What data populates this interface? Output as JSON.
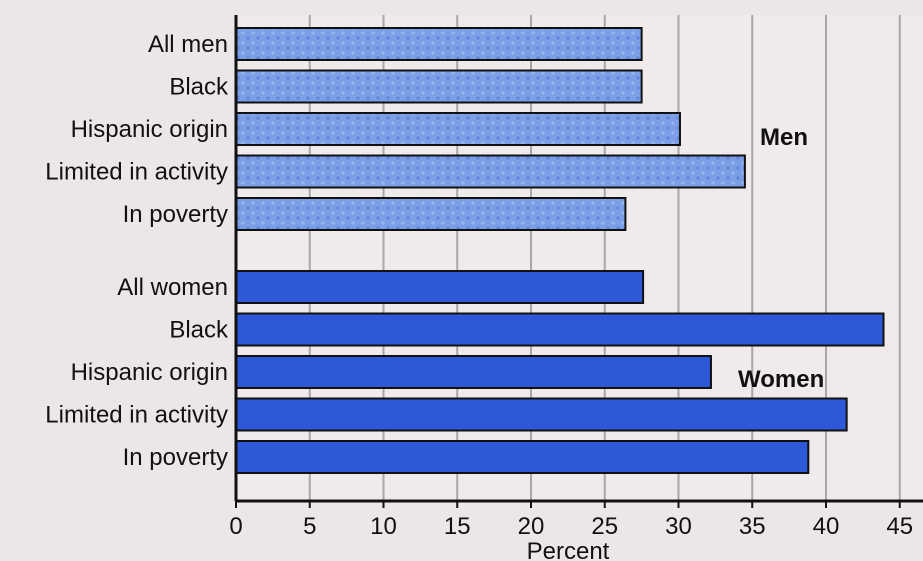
{
  "chart_data": {
    "type": "bar",
    "orientation": "horizontal",
    "xlabel": "Percent",
    "xlim": [
      0,
      45
    ],
    "xticks": [
      0,
      5,
      10,
      15,
      20,
      25,
      30,
      35,
      40,
      45
    ],
    "grid": "vertical",
    "groups": [
      {
        "name": "Men",
        "color": "#7b9ee6",
        "pattern": "dotted",
        "categories": [
          "All men",
          "Black",
          "Hispanic origin",
          "Limited in activity",
          "In poverty"
        ],
        "values": [
          27.5,
          27.5,
          30.1,
          34.5,
          26.4
        ]
      },
      {
        "name": "Women",
        "color": "#2d58d8",
        "pattern": "solid",
        "categories": [
          "All women",
          "Black",
          "Hispanic origin",
          "Limited in activity",
          "In poverty"
        ],
        "values": [
          27.6,
          43.9,
          32.2,
          41.4,
          38.8
        ]
      }
    ]
  }
}
